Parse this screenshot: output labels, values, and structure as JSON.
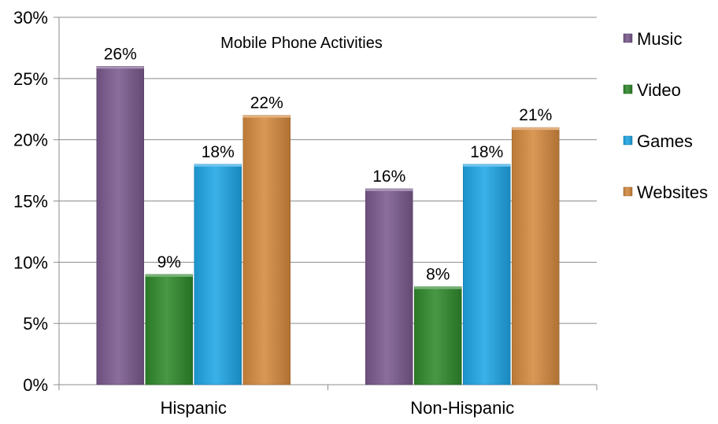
{
  "chart_data": {
    "type": "bar",
    "title": "Mobile Phone Activities",
    "xlabel": "",
    "ylabel": "",
    "categories": [
      "Hispanic",
      "Non-Hispanic"
    ],
    "ylim": [
      0,
      30
    ],
    "yticks": [
      0,
      5,
      10,
      15,
      20,
      25,
      30
    ],
    "ytick_labels": [
      "0%",
      "5%",
      "10%",
      "15%",
      "20%",
      "25%",
      "30%"
    ],
    "grid": true,
    "legend_position": "right",
    "series": [
      {
        "name": "Music",
        "color": "#7b5a8e",
        "values": [
          26,
          16
        ],
        "labels": [
          "26%",
          "16%"
        ]
      },
      {
        "name": "Video",
        "color": "#2f8a2c",
        "values": [
          9,
          8
        ],
        "labels": [
          "9%",
          "8%"
        ]
      },
      {
        "name": "Games",
        "color": "#1fa6e6",
        "values": [
          18,
          18
        ],
        "labels": [
          "18%",
          "18%"
        ]
      },
      {
        "name": "Websites",
        "color": "#d58a3f",
        "values": [
          22,
          21
        ],
        "labels": [
          "22%",
          "21%"
        ]
      }
    ]
  }
}
